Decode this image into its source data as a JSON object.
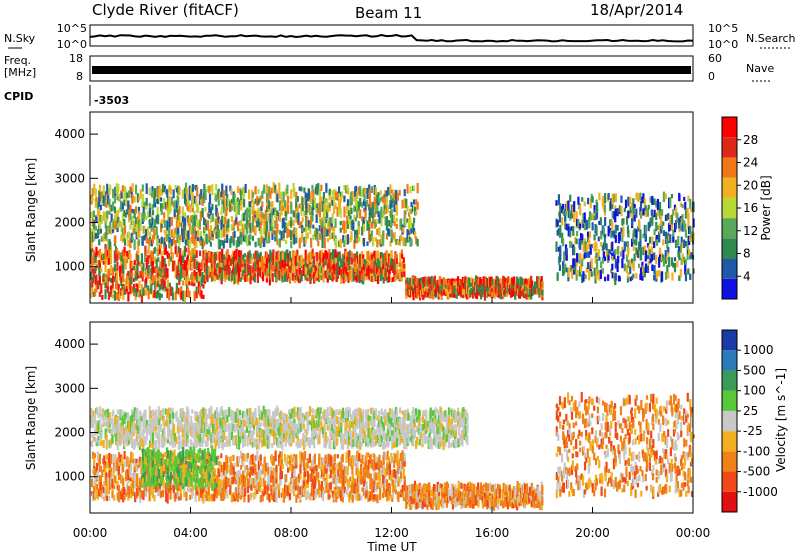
{
  "header": {
    "station": "Clyde River (fitACF)",
    "beam": "Beam 11",
    "date": "18/Apr/2014"
  },
  "strips": {
    "nsky_label": "N.Sky",
    "nsky_ticks": [
      "10^5",
      "10^0"
    ],
    "nsearch_label": "N.Search",
    "nsearch_ticks": [
      "10^5",
      "10^0"
    ],
    "freq_label": "Freq.",
    "freq_unit": "[MHz]",
    "freq_ticks": [
      "18",
      "8"
    ],
    "nave_label": "Nave",
    "nave_ticks": [
      "60",
      "0"
    ],
    "cpid_label": "CPID",
    "cpid_value": "-3503"
  },
  "axes": {
    "xlabel": "Time UT",
    "x_ticks": [
      "00:00",
      "04:00",
      "08:00",
      "12:00",
      "16:00",
      "20:00",
      "00:00"
    ],
    "ylabel": "Slant Range [km]",
    "y_ticks": [
      "1000",
      "2000",
      "3000",
      "4000"
    ]
  },
  "power_scale": {
    "label": "Power [dB]",
    "ticks": [
      "4",
      "8",
      "12",
      "16",
      "20",
      "24",
      "28"
    ],
    "colors": [
      "#1010e0",
      "#1e5aa8",
      "#2f8a4e",
      "#5aa85a",
      "#b8d838",
      "#f0b020",
      "#f07818",
      "#e02818",
      "#ff0000"
    ]
  },
  "velocity_scale": {
    "label": "Velocity [m s^-1]",
    "ticks": [
      "1000",
      "500",
      "100",
      "25",
      "-25",
      "-100",
      "-500",
      "-1000"
    ],
    "colors": [
      "#1a3aa8",
      "#2a7ab8",
      "#3a9a5a",
      "#58c838",
      "#c8c8c8",
      "#f0b020",
      "#f08018",
      "#f04818",
      "#e01010"
    ]
  },
  "chart_data": [
    {
      "type": "heatmap",
      "title": "Power",
      "xlabel": "Time UT",
      "ylabel": "Slant Range [km]",
      "xlim": [
        0,
        24
      ],
      "ylim": [
        180,
        4500
      ],
      "colorbar": {
        "label": "Power [dB]",
        "ticks": [
          4,
          8,
          12,
          16,
          20,
          24,
          28
        ]
      },
      "bands": [
        {
          "t0": 0.0,
          "t1": 4.5,
          "r0": 300,
          "r1": 1400,
          "level": "high"
        },
        {
          "t0": 4.5,
          "t1": 12.5,
          "r0": 700,
          "r1": 1300,
          "level": "high"
        },
        {
          "t0": 0.0,
          "t1": 13.0,
          "r0": 1500,
          "r1": 2800,
          "level": "mid"
        },
        {
          "t0": 12.5,
          "t1": 18.0,
          "r0": 350,
          "r1": 700,
          "level": "high"
        },
        {
          "t0": 18.5,
          "t1": 24.0,
          "r0": 700,
          "r1": 2600,
          "level": "low"
        }
      ]
    },
    {
      "type": "heatmap",
      "title": "Velocity",
      "xlabel": "Time UT",
      "ylabel": "Slant Range [km]",
      "xlim": [
        0,
        24
      ],
      "ylim": [
        180,
        4500
      ],
      "colorbar": {
        "label": "Velocity [m s^-1]",
        "ticks": [
          1000,
          500,
          100,
          25,
          -25,
          -100,
          -500,
          -1000
        ]
      },
      "bands": [
        {
          "t0": 0.0,
          "t1": 15.0,
          "r0": 1700,
          "r1": 2500,
          "level": "near-zero"
        },
        {
          "t0": 0.0,
          "t1": 12.5,
          "r0": 500,
          "r1": 1500,
          "level": "negative"
        },
        {
          "t0": 2.0,
          "t1": 5.0,
          "r0": 800,
          "r1": 1600,
          "level": "positive"
        },
        {
          "t0": 12.5,
          "t1": 18.0,
          "r0": 350,
          "r1": 800,
          "level": "negative"
        },
        {
          "t0": 18.5,
          "t1": 24.0,
          "r0": 600,
          "r1": 2800,
          "level": "negative"
        }
      ]
    }
  ]
}
